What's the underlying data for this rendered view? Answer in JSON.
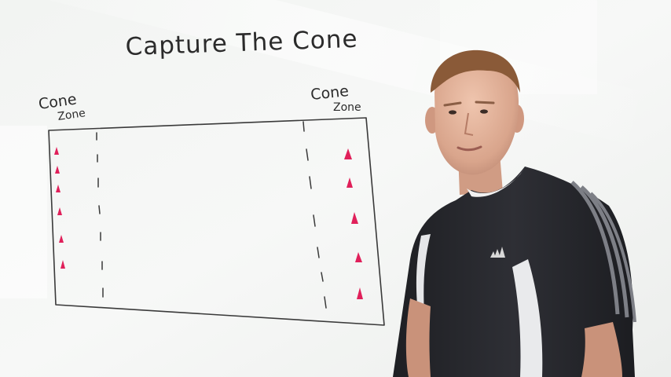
{
  "whiteboard": {
    "title": "Capture The Cone",
    "left_zone": {
      "line1": "Cone",
      "line2": "Zone"
    },
    "right_zone": {
      "line1": "Cone",
      "line2": "Zone"
    },
    "cone_color": "#e0205a",
    "left_cones_count": 6,
    "right_cones_count": 5
  },
  "presenter": {
    "shirt_color": "#2a2b30",
    "shirt_logo": "adidas-logo"
  }
}
